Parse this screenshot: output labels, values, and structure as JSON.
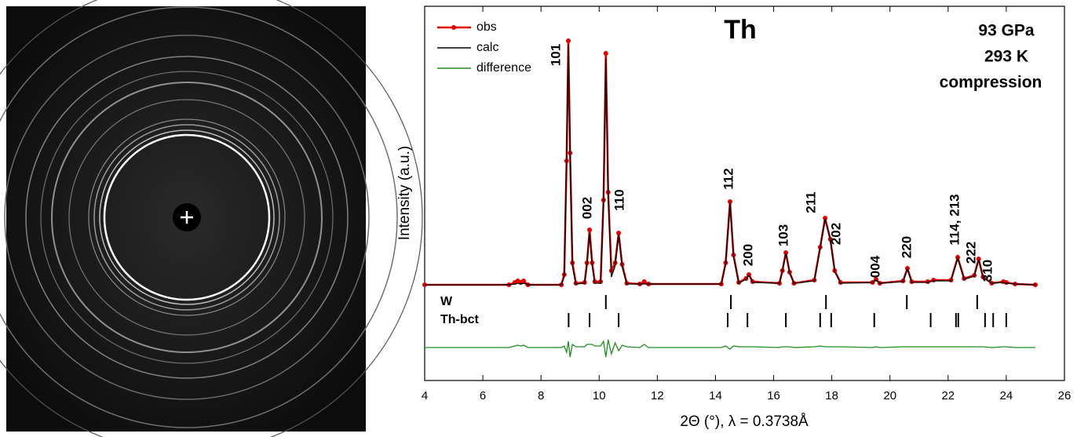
{
  "chart_data": {
    "type": "line",
    "title": "Th",
    "conditions": [
      "93 GPa",
      "293 K",
      "compression"
    ],
    "xlabel": "2Θ (°), λ = 0.3738Å",
    "ylabel": "Intensity (a.u.)",
    "xlim": [
      4,
      26
    ],
    "xticks": [
      4,
      6,
      8,
      10,
      12,
      14,
      16,
      18,
      20,
      22,
      24,
      26
    ],
    "ylim": [
      0,
      477
    ],
    "x": [
      4.0,
      6.9,
      7.1,
      7.2,
      7.3,
      7.4,
      7.55,
      8.7,
      8.8,
      8.88,
      8.94,
      9.0,
      9.08,
      9.2,
      9.5,
      9.58,
      9.67,
      9.76,
      9.85,
      10.05,
      10.15,
      10.23,
      10.31,
      10.42,
      10.55,
      10.67,
      10.79,
      10.95,
      11.4,
      11.55,
      11.7,
      14.2,
      14.35,
      14.5,
      14.62,
      14.8,
      15.05,
      15.15,
      15.28,
      16.2,
      16.3,
      16.42,
      16.55,
      16.7,
      17.4,
      17.6,
      17.77,
      17.95,
      18.1,
      18.3,
      19.4,
      19.52,
      19.65,
      20.45,
      20.6,
      20.75,
      21.3,
      21.5,
      22.1,
      22.33,
      22.55,
      22.9,
      23.05,
      23.2,
      23.5,
      23.9,
      24.0,
      24.3,
      25.0
    ],
    "series": [
      {
        "name": "obs",
        "color": "#e00000",
        "markers": true,
        "values": [
          122,
          122,
          125,
          127,
          125,
          127,
          122,
          122,
          135,
          280,
          433,
          290,
          150,
          124,
          125,
          150,
          192,
          150,
          126,
          126,
          230,
          417,
          240,
          140,
          150,
          188,
          148,
          124,
          123,
          126,
          123,
          123,
          150,
          228,
          160,
          125,
          130,
          135,
          126,
          124,
          140,
          163,
          138,
          124,
          128,
          170,
          207,
          180,
          140,
          125,
          125,
          129,
          124,
          127,
          143,
          126,
          126,
          128,
          128,
          157,
          130,
          134,
          155,
          132,
          124,
          126,
          125,
          123,
          122
        ]
      },
      {
        "name": "calc",
        "color": "#000000",
        "markers": false,
        "values": [
          122,
          122,
          123,
          124,
          123,
          124,
          122,
          122,
          133,
          285,
          428,
          295,
          146,
          123,
          124,
          146,
          188,
          146,
          124,
          124,
          226,
          410,
          236,
          132,
          146,
          186,
          145,
          123,
          123,
          123,
          123,
          123,
          148,
          227,
          158,
          124,
          129,
          134,
          125,
          124,
          139,
          162,
          137,
          124,
          127,
          168,
          206,
          179,
          139,
          124,
          125,
          128,
          124,
          126,
          142,
          125,
          125,
          127,
          127,
          156,
          129,
          133,
          154,
          131,
          124,
          125,
          124,
          123,
          122
        ]
      },
      {
        "name": "difference",
        "color": "#1f8f1f",
        "markers": false,
        "values": [
          42,
          42,
          44,
          45,
          44,
          45,
          42,
          42,
          44,
          36,
          50,
          30,
          46,
          43,
          43,
          46,
          46,
          46,
          44,
          44,
          50,
          30,
          52,
          34,
          48,
          38,
          45,
          43,
          42,
          46,
          42,
          42,
          44,
          40,
          44,
          43,
          43,
          43,
          43,
          42,
          43,
          43,
          43,
          42,
          43,
          44,
          43,
          43,
          43,
          43,
          42,
          43,
          42,
          43,
          43,
          43,
          43,
          43,
          43,
          43,
          43,
          43,
          43,
          43,
          42,
          43,
          43,
          42,
          42
        ]
      }
    ],
    "reflections": [
      {
        "name": "W",
        "positions": [
          10.23,
          14.53,
          17.8,
          20.58,
          23.0
        ]
      },
      {
        "name": "Th-bct",
        "positions": [
          8.95,
          9.67,
          10.67,
          14.42,
          15.1,
          16.42,
          17.6,
          17.98,
          19.46,
          21.4,
          22.27,
          22.35,
          23.27,
          23.55,
          24.0
        ]
      }
    ],
    "annotations": [
      {
        "text": "101",
        "x": 8.53,
        "y": 415
      },
      {
        "text": "002",
        "x": 9.61,
        "y": 220
      },
      {
        "text": "110",
        "x": 10.72,
        "y": 230
      },
      {
        "text": "112",
        "x": 14.47,
        "y": 257
      },
      {
        "text": "200",
        "x": 15.15,
        "y": 160
      },
      {
        "text": "103",
        "x": 16.36,
        "y": 185
      },
      {
        "text": "211",
        "x": 17.31,
        "y": 227
      },
      {
        "text": "202",
        "x": 18.17,
        "y": 187
      },
      {
        "text": "004",
        "x": 19.52,
        "y": 145
      },
      {
        "text": "220",
        "x": 20.6,
        "y": 170
      },
      {
        "text": "114, 213",
        "x": 22.25,
        "y": 205
      },
      {
        "text": "222",
        "x": 22.81,
        "y": 163
      },
      {
        "text": "310",
        "x": 23.38,
        "y": 140
      }
    ]
  }
}
